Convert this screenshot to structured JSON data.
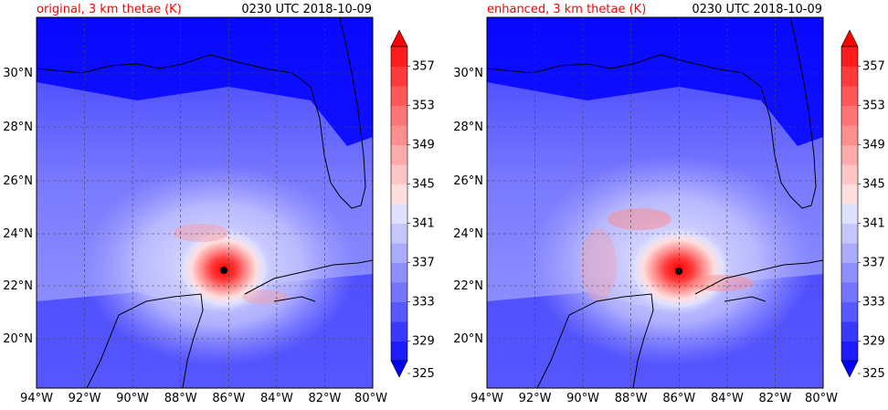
{
  "panels": [
    {
      "id": "left",
      "title_left": "original, 3 km thetae (K)",
      "title_right": "0230 UTC 2018-10-09",
      "storm_center": {
        "lon": -86.2,
        "lat": 22.7
      }
    },
    {
      "id": "right",
      "title_left": "enhanced, 3 km thetae (K)",
      "title_right": "0230 UTC 2018-10-09",
      "storm_center": {
        "lon": -85.9,
        "lat": 22.6
      }
    }
  ],
  "map": {
    "lon_range": [
      -94,
      -80
    ],
    "lat_range": [
      18.2,
      32
    ],
    "lon_ticks": [
      "94°W",
      "92°W",
      "90°W",
      "88°W",
      "86°W",
      "84°W",
      "82°W",
      "80°W"
    ],
    "lat_ticks": [
      "20°N",
      "22°N",
      "24°N",
      "26°N",
      "28°N",
      "30°N"
    ],
    "gridlines": true
  },
  "colorbar": {
    "labels": [
      "325",
      "329",
      "333",
      "337",
      "341",
      "345",
      "349",
      "353",
      "357"
    ],
    "levels": [
      325,
      327,
      329,
      331,
      333,
      335,
      337,
      339,
      341,
      343,
      345,
      347,
      349,
      351,
      353,
      355,
      357,
      359
    ],
    "colors": [
      "#0000ff",
      "#1c1cff",
      "#3a3aff",
      "#5858ff",
      "#7474ff",
      "#8f8fff",
      "#aaaaff",
      "#c6c6ff",
      "#e0e0ff",
      "#ffdede",
      "#ffc6c6",
      "#ffaaaa",
      "#ff8f8f",
      "#ff7474",
      "#ff5858",
      "#ff3a3a",
      "#ff1c1c",
      "#ff0000"
    ],
    "extend": "both"
  },
  "colors": {
    "title_accent": "#ff0000",
    "coastline": "#000000",
    "grid": "#444444"
  }
}
